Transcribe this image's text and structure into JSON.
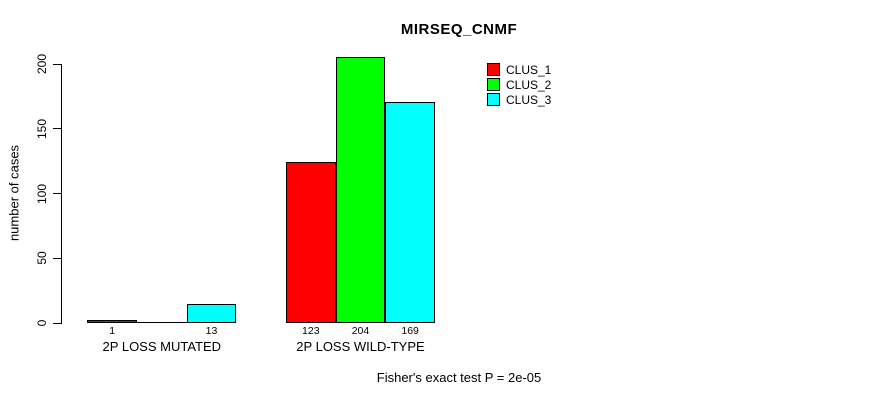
{
  "chart_data": {
    "type": "bar",
    "title": "MIRSEQ_CNMF",
    "xlabel": "",
    "ylabel": "number of cases",
    "yticks": [
      0,
      50,
      100,
      150,
      200
    ],
    "ylim": [
      0,
      210
    ],
    "grid": false,
    "legend_position": "top-right-inside",
    "bar_border_color": "#000000",
    "series": [
      {
        "name": "CLUS_1",
        "color": "#ff0000"
      },
      {
        "name": "CLUS_2",
        "color": "#00ff00"
      },
      {
        "name": "CLUS_3",
        "color": "#00ffff"
      }
    ],
    "categories": [
      "2P LOSS MUTATED",
      "2P LOSS WILD-TYPE"
    ],
    "groups": [
      {
        "label": "2P LOSS MUTATED",
        "values": [
          1,
          0,
          13
        ],
        "value_labels": [
          "1",
          "",
          "13"
        ]
      },
      {
        "label": "2P LOSS WILD-TYPE",
        "values": [
          123,
          204,
          169
        ],
        "value_labels": [
          "123",
          "204",
          "169"
        ]
      }
    ],
    "footer": "Fisher's exact test P = 2e-05"
  }
}
